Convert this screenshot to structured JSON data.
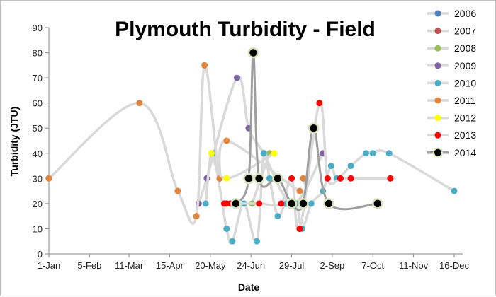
{
  "chart_data": {
    "type": "line",
    "title": "Plymouth Turbidity - Field",
    "xlabel": "Date",
    "ylabel": "Turbidity (JTU)",
    "ylim": [
      0,
      90
    ],
    "yticks": [
      0,
      10,
      20,
      30,
      40,
      50,
      60,
      70,
      80,
      90
    ],
    "xlim": [
      "1-Jan",
      "16-Dec"
    ],
    "xticks": [
      "1-Jan",
      "5-Feb",
      "11-Mar",
      "15-Apr",
      "20-May",
      "24-Jun",
      "29-Jul",
      "2-Sep",
      "7-Oct",
      "11-Nov",
      "16-Dec"
    ],
    "grid": false,
    "legend_position": "right",
    "smoothed_lines": true,
    "series": [
      {
        "name": "2006",
        "color": "#4f81bd",
        "points": []
      },
      {
        "name": "2007",
        "color": "#c0504d",
        "points": []
      },
      {
        "name": "2008",
        "color": "#9bbb59",
        "points": [
          {
            "x": "25-Jun",
            "y": 20
          },
          {
            "x": "10-Jul",
            "y": 40
          }
        ]
      },
      {
        "name": "2009",
        "color": "#8064a2",
        "points": [
          {
            "x": "10-May",
            "y": 20
          },
          {
            "x": "17-May",
            "y": 30
          },
          {
            "x": "12-Jun",
            "y": 70
          },
          {
            "x": "22-Jun",
            "y": 50
          },
          {
            "x": "5-Jul",
            "y": 40
          },
          {
            "x": "30-Jul",
            "y": 20
          },
          {
            "x": "25-Aug",
            "y": 40
          }
        ]
      },
      {
        "name": "2010",
        "color": "#4bacc6",
        "points": [
          {
            "x": "16-May",
            "y": 20
          },
          {
            "x": "22-May",
            "y": 40
          },
          {
            "x": "3-Jun",
            "y": 10
          },
          {
            "x": "8-Jun",
            "y": 5
          },
          {
            "x": "18-Jun",
            "y": 20
          },
          {
            "x": "29-Jun",
            "y": 5
          },
          {
            "x": "5-Jul",
            "y": 40
          },
          {
            "x": "10-Jul",
            "y": 30
          },
          {
            "x": "17-Jul",
            "y": 15
          },
          {
            "x": "24-Jul",
            "y": 20
          },
          {
            "x": "2-Aug",
            "y": 20
          },
          {
            "x": "7-Aug",
            "y": 10
          },
          {
            "x": "15-Aug",
            "y": 20
          },
          {
            "x": "25-Aug",
            "y": 25
          },
          {
            "x": "1-Sep",
            "y": 35
          },
          {
            "x": "6-Sep",
            "y": 30
          },
          {
            "x": "18-Sep",
            "y": 35
          },
          {
            "x": "1-Oct",
            "y": 40
          },
          {
            "x": "7-Oct",
            "y": 40
          },
          {
            "x": "21-Oct",
            "y": 40
          },
          {
            "x": "16-Dec",
            "y": 25
          }
        ]
      },
      {
        "name": "2011",
        "color": "#e2843c",
        "points": [
          {
            "x": "1-Jan",
            "y": 30
          },
          {
            "x": "20-Mar",
            "y": 60
          },
          {
            "x": "22-Apr",
            "y": 25
          },
          {
            "x": "8-May",
            "y": 15
          },
          {
            "x": "15-May",
            "y": 75
          },
          {
            "x": "28-May",
            "y": 30
          },
          {
            "x": "3-Jun",
            "y": 45
          },
          {
            "x": "5-Aug",
            "y": 25
          },
          {
            "x": "8-Aug",
            "y": 30
          }
        ]
      },
      {
        "name": "2012",
        "color": "#ffff00",
        "points": [
          {
            "x": "21-May",
            "y": 40
          },
          {
            "x": "3-Jun",
            "y": 30
          },
          {
            "x": "14-Jul",
            "y": 40
          }
        ]
      },
      {
        "name": "2013",
        "color": "#ff0000",
        "points": [
          {
            "x": "1-Jun",
            "y": 20
          },
          {
            "x": "3-Jun",
            "y": 20
          },
          {
            "x": "6-Jun",
            "y": 20
          },
          {
            "x": "1-Jul",
            "y": 20
          },
          {
            "x": "20-Jul",
            "y": 20
          },
          {
            "x": "29-Jul",
            "y": 30
          },
          {
            "x": "5-Aug",
            "y": 10
          },
          {
            "x": "22-Aug",
            "y": 60
          },
          {
            "x": "29-Aug",
            "y": 30
          },
          {
            "x": "9-Sep",
            "y": 30
          },
          {
            "x": "18-Sep",
            "y": 30
          },
          {
            "x": "22-Oct",
            "y": 30
          }
        ]
      },
      {
        "name": "2014",
        "color": "#000000",
        "points": [
          {
            "x": "11-Jun",
            "y": 20
          },
          {
            "x": "22-Jun",
            "y": 30
          },
          {
            "x": "26-Jun",
            "y": 80
          },
          {
            "x": "1-Jul",
            "y": 30
          },
          {
            "x": "17-Jul",
            "y": 30
          },
          {
            "x": "29-Jul",
            "y": 20
          },
          {
            "x": "8-Aug",
            "y": 20
          },
          {
            "x": "17-Aug",
            "y": 50
          },
          {
            "x": "30-Aug",
            "y": 20
          },
          {
            "x": "11-Oct",
            "y": 20
          }
        ]
      }
    ]
  }
}
